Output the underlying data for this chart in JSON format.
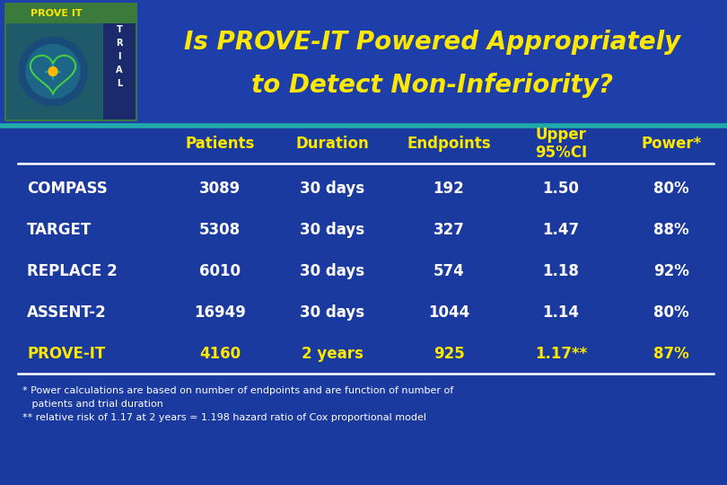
{
  "title_line1": "Is PROVE-IT Powered Appropriately",
  "title_line2": "to Detect Non-Inferiority?",
  "title_color": "#FFE800",
  "bg_color": "#1A3A9F",
  "header_bg_color": "#2244AA",
  "teal_line_color": "#20AAAA",
  "white_color": "#FFFFFF",
  "yellow_color": "#FFE800",
  "col_headers": [
    "Patients",
    "Duration",
    "Endpoints",
    "Upper\n95%CI",
    "Power*"
  ],
  "col_header_color": "#FFE800",
  "rows": [
    {
      "name": "COMPASS",
      "name_color": "#FFFFFF",
      "data_color": "#FFFFFF",
      "values": [
        "3089",
        "30 days",
        "192",
        "1.50",
        "80%"
      ]
    },
    {
      "name": "TARGET",
      "name_color": "#FFFFFF",
      "data_color": "#FFFFFF",
      "values": [
        "5308",
        "30 days",
        "327",
        "1.47",
        "88%"
      ]
    },
    {
      "name": "REPLACE 2",
      "name_color": "#FFFFFF",
      "data_color": "#FFFFFF",
      "values": [
        "6010",
        "30 days",
        "574",
        "1.18",
        "92%"
      ]
    },
    {
      "name": "ASSENT-2",
      "name_color": "#FFFFFF",
      "data_color": "#FFFFFF",
      "values": [
        "16949",
        "30 days",
        "1044",
        "1.14",
        "80%"
      ]
    },
    {
      "name": "PROVE-IT",
      "name_color": "#FFE800",
      "data_color": "#FFE800",
      "values": [
        "4160",
        "2 years",
        "925",
        "1.17**",
        "87%"
      ]
    }
  ],
  "footnote1": "* Power calculations are based on number of endpoints and are function of number of",
  "footnote2": "   patients and trial duration",
  "footnote3": "** relative risk of 1.17 at 2 years = 1.198 hazard ratio of Cox proportional model",
  "footnote_color": "#FFFFFF",
  "logo_bg": "#3A7A40",
  "logo_text_bg": "#2A5A30",
  "trial_bg": "#223388"
}
